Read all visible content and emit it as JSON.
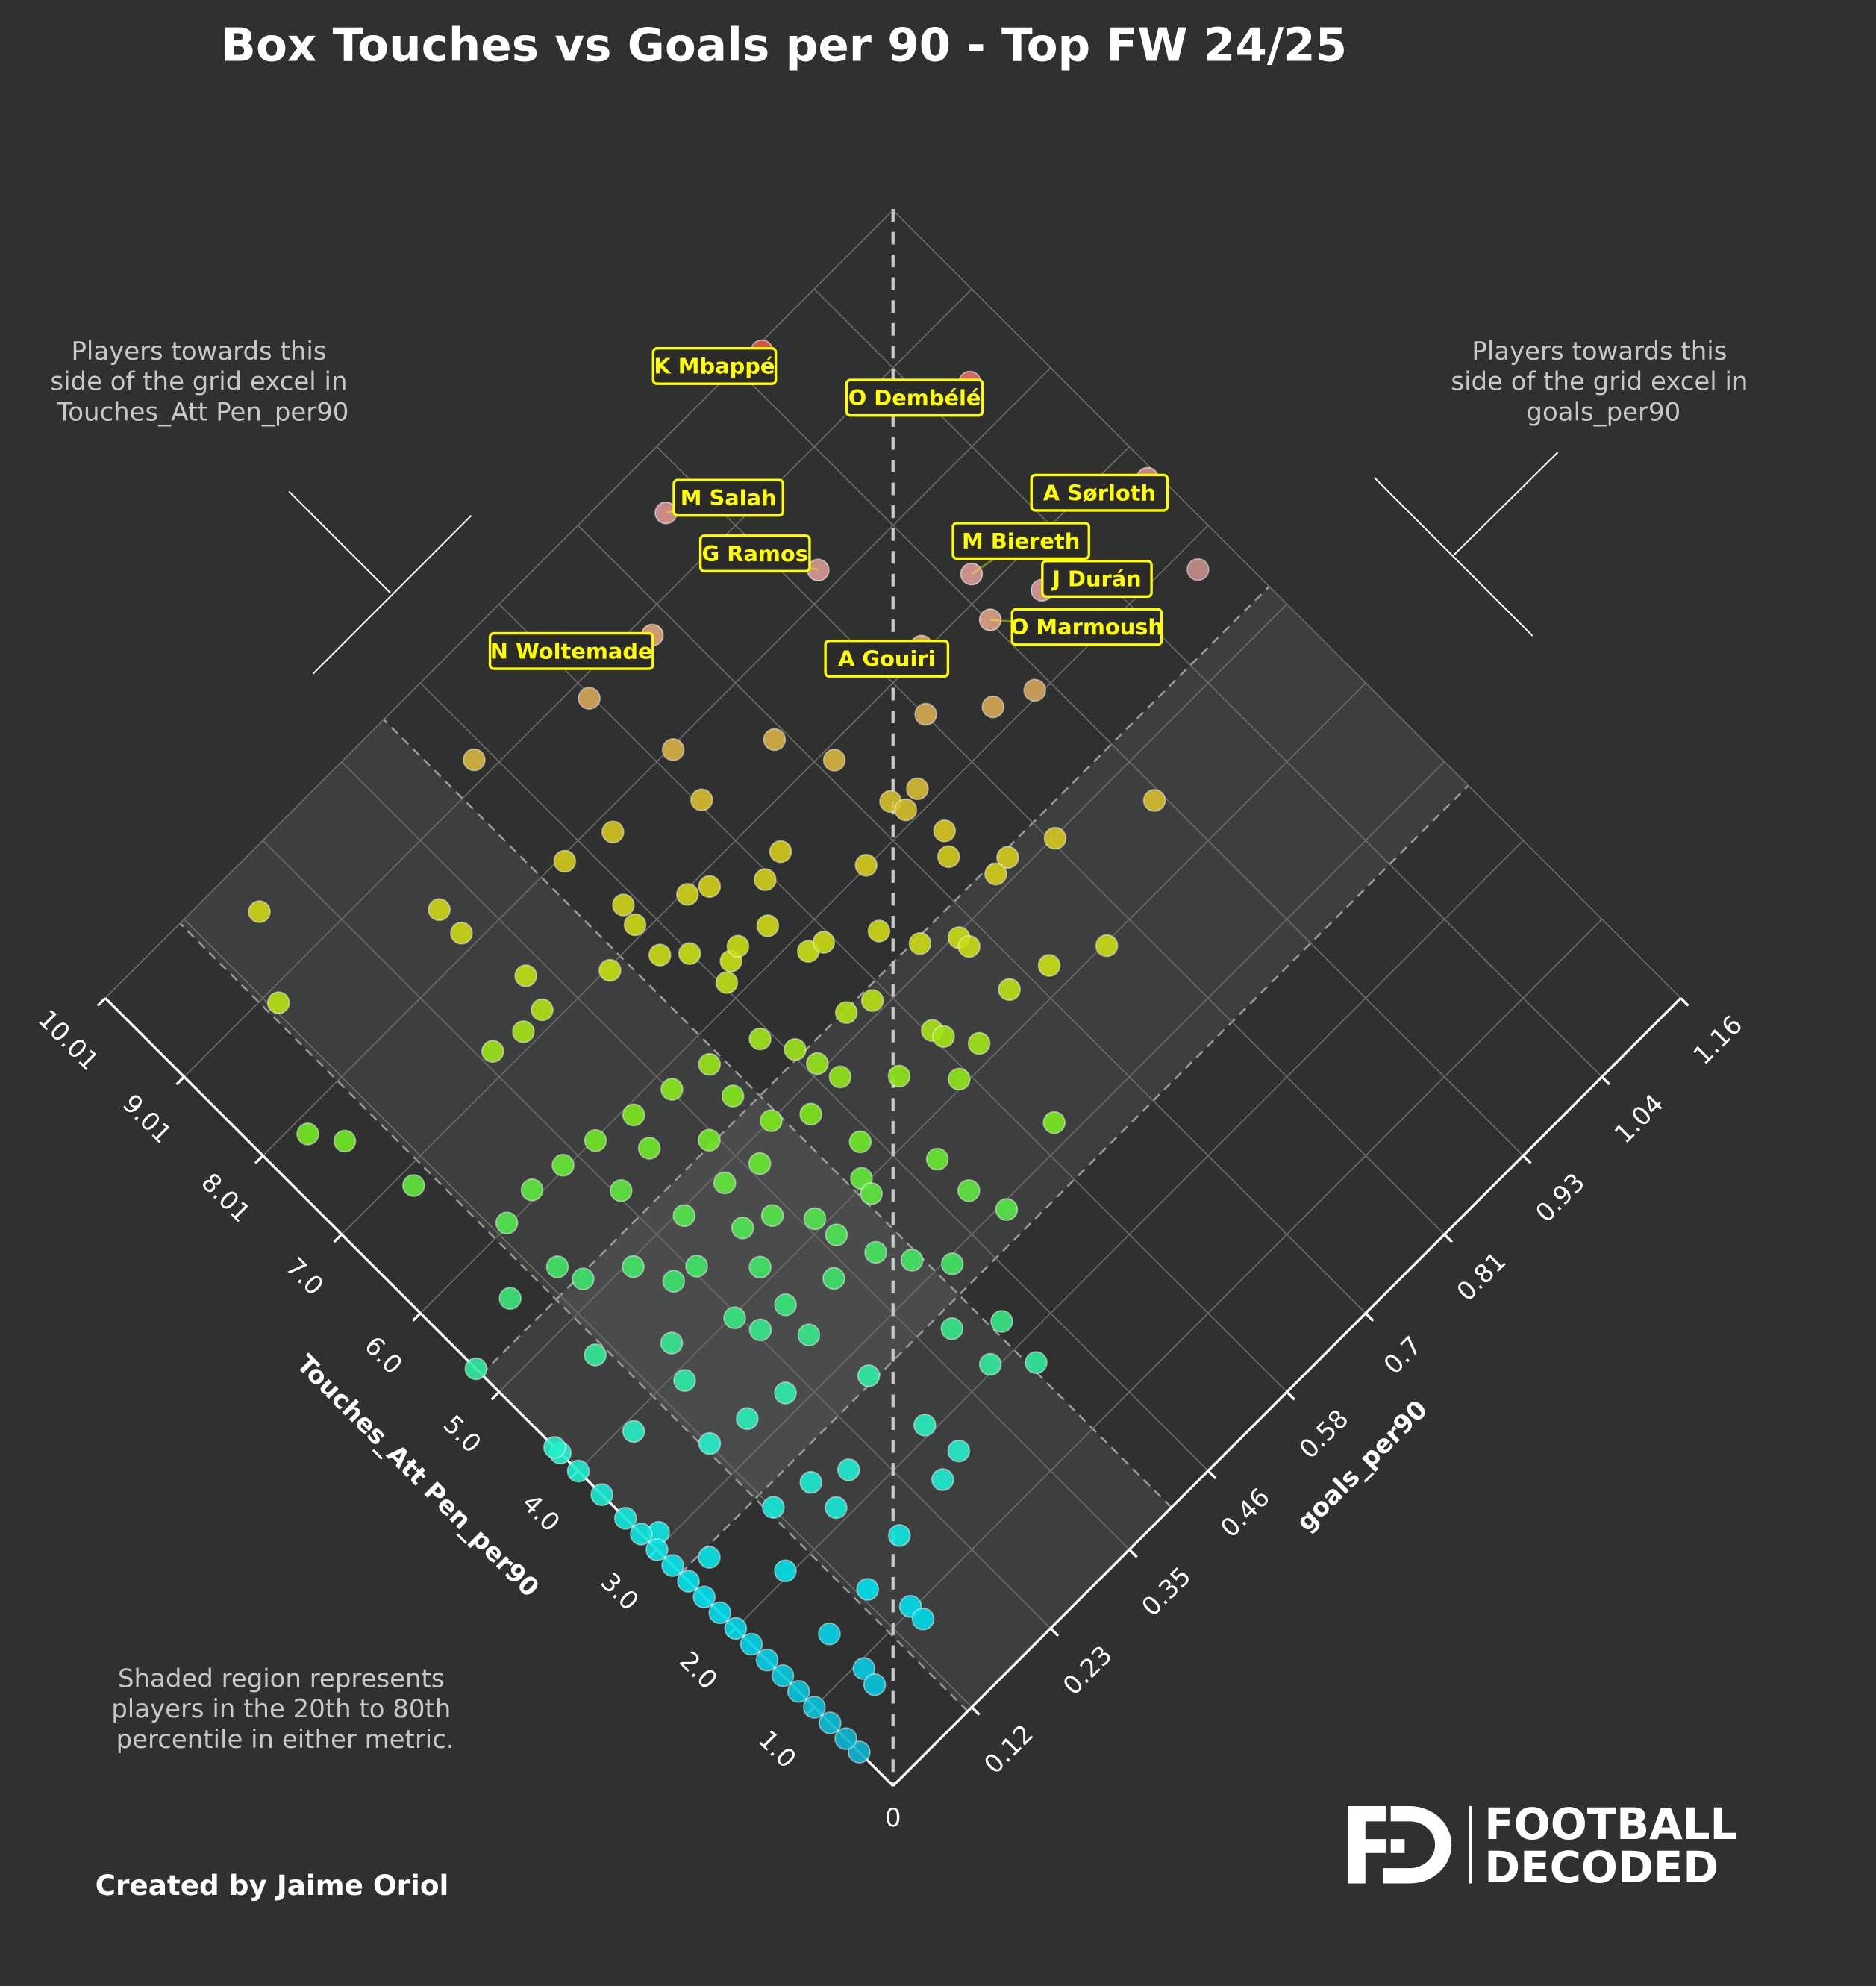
{
  "chart_data": {
    "type": "scatter",
    "title": "Box Touches vs Goals per 90 - Top FW 24/25",
    "xlabel": "Touches_Att Pen_per90",
    "ylabel": "goals_per90",
    "xlim": [
      0,
      10.01
    ],
    "ylim": [
      0,
      1.16
    ],
    "origin_label": "0",
    "x_ticks": [
      "1.0",
      "2.0",
      "3.0",
      "4.0",
      "5.0",
      "6.0",
      "7.0",
      "8.01",
      "9.01",
      "10.01"
    ],
    "y_ticks": [
      "0.12",
      "0.23",
      "0.35",
      "0.46",
      "0.58",
      "0.7",
      "0.81",
      "0.93",
      "1.04",
      "1.16"
    ],
    "grid": true,
    "orientation": "rotated 45 degrees (diamond)",
    "shaded_bands": {
      "goals_per90": [
        0.11,
        0.41
      ],
      "Touches_Att Pen_per90": [
        2.7,
        5.23
      ]
    },
    "labeled_players": [
      {
        "name": "K Mbappé",
        "x": 9.95,
        "y": 0.96
      },
      {
        "name": "O Dembélé",
        "x": 8.43,
        "y": 1.09
      },
      {
        "name": "M Salah",
        "x": 9.53,
        "y": 0.77
      },
      {
        "name": "G Ramos",
        "x": 8.2,
        "y": 0.84
      },
      {
        "name": "A Sørloth",
        "x": 6.69,
        "y": 1.15
      },
      {
        "name": "M Biereth",
        "x": 7.2,
        "y": 0.95
      },
      {
        "name": "J Durán",
        "x": 6.65,
        "y": 0.99
      },
      {
        "name": "O Marmoush",
        "x": 6.79,
        "y": 0.93
      },
      {
        "name": "N Woltemade",
        "x": 8.84,
        "y": 0.67
      },
      {
        "name": "A Gouiri",
        "x": 7.06,
        "y": 0.86
      }
    ],
    "points": [
      [
        5.79,
        1.12
      ],
      [
        9.18,
        0.447
      ],
      [
        8.84,
        0.577
      ],
      [
        7.98,
        0.601
      ],
      [
        7.4,
        0.683
      ],
      [
        6.89,
        0.712
      ],
      [
        7.48,
        0.585
      ],
      [
        7.84,
        0.496
      ],
      [
        7.96,
        0.439
      ],
      [
        6.65,
        0.605
      ],
      [
        6.57,
        0.573
      ],
      [
        6.88,
        0.527
      ],
      [
        6.97,
        0.505
      ],
      [
        7.31,
        0.45
      ],
      [
        7.11,
        0.444
      ],
      [
        6.26,
        0.541
      ],
      [
        6.02,
        0.658
      ],
      [
        6.27,
        0.723
      ],
      [
        6.18,
        0.752
      ],
      [
        6.12,
        0.728
      ],
      [
        6.6,
        0.813
      ],
      [
        6.22,
        0.868
      ],
      [
        6.06,
        0.911
      ],
      [
        4.6,
        0.918
      ],
      [
        4.99,
        0.817
      ],
      [
        5.74,
        0.741
      ],
      [
        5.55,
        0.725
      ],
      [
        5.17,
        0.768
      ],
      [
        5.14,
        0.747
      ],
      [
        9.58,
        0.177
      ],
      [
        8.88,
        0.124
      ],
      [
        8.45,
        0.311
      ],
      [
        8.16,
        0.31
      ],
      [
        7.48,
        0.326
      ],
      [
        7.16,
        0.313
      ],
      [
        7.21,
        0.246
      ],
      [
        7.14,
        0.283
      ],
      [
        6.98,
        0.392
      ],
      [
        6.76,
        0.44
      ],
      [
        6.58,
        0.463
      ],
      [
        6.27,
        0.488
      ],
      [
        6.32,
        0.504
      ],
      [
        6.16,
        0.469
      ],
      [
        5.84,
        0.552
      ],
      [
        5.8,
        0.57
      ],
      [
        5.52,
        0.619
      ],
      [
        5.18,
        0.64
      ],
      [
        4.97,
        0.673
      ],
      [
        4.85,
        0.674
      ],
      [
        4.22,
        0.719
      ],
      [
        3.98,
        0.776
      ],
      [
        4.32,
        0.672
      ],
      [
        7.86,
        0.049
      ],
      [
        7.58,
        0.071
      ],
      [
        6.86,
        0.089
      ],
      [
        5.21,
        0.535
      ],
      [
        5.12,
        0.563
      ],
      [
        4.55,
        0.585
      ],
      [
        4.17,
        0.61
      ],
      [
        4.44,
        0.589
      ],
      [
        4.07,
        0.569
      ],
      [
        3.19,
        0.607
      ],
      [
        4.47,
        0.527
      ],
      [
        4.84,
        0.483
      ],
      [
        5.07,
        0.476
      ],
      [
        5.59,
        0.452
      ],
      [
        5.75,
        0.396
      ],
      [
        5.83,
        0.35
      ],
      [
        5.91,
        0.303
      ],
      [
        5.99,
        0.256
      ],
      [
        6.04,
        0.214
      ],
      [
        6.08,
        0.173
      ],
      [
        6.03,
        0.13
      ],
      [
        5.53,
        0.077
      ],
      [
        5.43,
        0.135
      ],
      [
        4.95,
        0.191
      ],
      [
        4.55,
        0.238
      ],
      [
        4.39,
        0.331
      ],
      [
        3.86,
        0.364
      ],
      [
        3.22,
        0.401
      ],
      [
        2.94,
        0.428
      ],
      [
        2.53,
        0.38
      ],
      [
        2.26,
        0.422
      ],
      [
        1.78,
        0.417
      ],
      [
        2.06,
        0.382
      ],
      [
        2.94,
        0.508
      ],
      [
        3.3,
        0.494
      ],
      [
        3.7,
        0.494
      ],
      [
        3.74,
        0.238
      ],
      [
        3.9,
        0.145
      ],
      [
        4.63,
        0.098
      ],
      [
        5.3,
        0.0
      ],
      [
        4.23,
        0.0
      ],
      [
        3.9,
        0.07
      ],
      [
        3.34,
        0.117
      ],
      [
        3.18,
        0.21
      ],
      [
        2.76,
        0.284
      ],
      [
        2.09,
        0.289
      ],
      [
        1.71,
        0.295
      ],
      [
        1.63,
        0.262
      ],
      [
        2.29,
        0.2
      ],
      [
        2.53,
        0.117
      ],
      [
        3.1,
        0.014
      ],
      [
        2.62,
        0.033
      ],
      [
        2.05,
        0.079
      ],
      [
        2.13,
        0.163
      ],
      [
        1.55,
        0.189
      ],
      [
        1.03,
        0.145
      ],
      [
        0.87,
        0.145
      ],
      [
        1.41,
        0.126
      ],
      [
        1.37,
        0.065
      ],
      [
        0.93,
        0.065
      ],
      [
        0.76,
        0.061
      ],
      [
        0.43,
        0.0
      ],
      [
        4.14,
        0.284
      ],
      [
        4.95,
        0.266
      ],
      [
        5.51,
        0.238
      ],
      [
        5.27,
        0.34
      ],
      [
        4.79,
        0.434
      ],
      [
        4.06,
        0.424
      ],
      [
        3.98,
        0.228
      ],
      [
        2.45,
        0.163
      ],
      [
        3.26,
        0.163
      ],
      [
        4.22,
        0.163
      ],
      [
        5.19,
        0.145
      ],
      [
        3.74,
        0.275
      ],
      [
        4.5,
        0.3
      ],
      [
        4.8,
        0.36
      ],
      [
        5.0,
        0.4
      ],
      [
        4.3,
        0.45
      ],
      [
        3.6,
        0.33
      ],
      [
        3.4,
        0.27
      ],
      [
        4.6,
        0.21
      ],
      [
        5.6,
        0.29
      ],
      [
        5.3,
        0.47
      ],
      [
        4.1,
        0.36
      ],
      [
        3.9,
        0.42
      ],
      [
        3.5,
        0.38
      ],
      [
        4.9,
        0.32
      ],
      [
        5.4,
        0.39
      ],
      [
        4.3,
        0.0
      ],
      [
        4.0,
        0.0
      ],
      [
        3.7,
        0.0
      ],
      [
        3.4,
        0.0
      ],
      [
        3.2,
        0.0
      ],
      [
        3.0,
        0.0
      ],
      [
        2.8,
        0.0
      ],
      [
        2.6,
        0.0
      ],
      [
        2.4,
        0.0
      ],
      [
        2.2,
        0.0
      ],
      [
        2.0,
        0.0
      ],
      [
        1.8,
        0.0
      ],
      [
        1.6,
        0.0
      ],
      [
        1.4,
        0.0
      ],
      [
        1.2,
        0.0
      ],
      [
        1.0,
        0.0
      ],
      [
        0.8,
        0.0
      ],
      [
        0.6,
        0.0
      ]
    ]
  },
  "annotations": {
    "left_note": [
      "Players towards this",
      "side of the grid excel in",
      "Touches_Att Pen_per90"
    ],
    "right_note": [
      "Players towards this",
      "side of the grid excel in",
      "goals_per90"
    ],
    "shade_note": [
      "Shaded region represents",
      "players in the 20th to 80th",
      "percentile in either metric."
    ]
  },
  "credit": "Created by Jaime Oriol",
  "logo": {
    "line1": "FOOTBALL",
    "line2": "DECODED",
    "mark": "FD"
  },
  "colors": {
    "background": "#2f3030",
    "label_text": "#ffff00",
    "grid": "#6a6a6a",
    "axis": "#ffffff"
  }
}
